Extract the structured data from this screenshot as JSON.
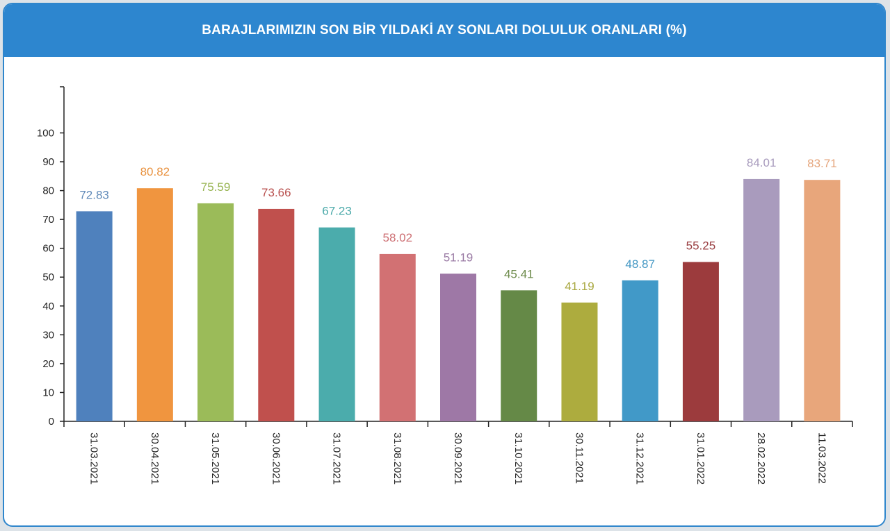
{
  "header": {
    "title": "BARAJLARIMIZIN SON BİR YILDAKİ AY SONLARI DOLULUK ORANLARI (%)"
  },
  "chart_data": {
    "type": "bar",
    "title": "BARAJLARIMIZIN SON BİR YILDAKİ AY SONLARI DOLULUK ORANLARI (%)",
    "xlabel": "",
    "ylabel": "",
    "ylim": [
      0,
      116
    ],
    "yticks": [
      0,
      10,
      20,
      30,
      40,
      50,
      60,
      70,
      80,
      90,
      100
    ],
    "grid": false,
    "legend": "none",
    "categories": [
      "31.03.2021",
      "30.04.2021",
      "31.05.2021",
      "30.06.2021",
      "31.07.2021",
      "31.08.2021",
      "30.09.2021",
      "31.10.2021",
      "30.11.2021",
      "31.12.2021",
      "31.01.2022",
      "28.02.2022",
      "11.03.2022"
    ],
    "values": [
      72.83,
      80.82,
      75.59,
      73.66,
      67.23,
      58.02,
      51.19,
      45.41,
      41.19,
      48.87,
      55.25,
      84.01,
      83.71
    ],
    "value_labels": [
      "72.83",
      "80.82",
      "75.59",
      "73.66",
      "67.23",
      "58.02",
      "51.19",
      "45.41",
      "41.19",
      "48.87",
      "55.25",
      "84.01",
      "83.71"
    ],
    "bar_colors": [
      "#4f81bd",
      "#f0953f",
      "#9bbb59",
      "#c0504d",
      "#4bacac",
      "#d27173",
      "#9e78a6",
      "#658947",
      "#adac3e",
      "#4199c8",
      "#9c3b3d",
      "#a99bbd",
      "#e8a67b"
    ],
    "label_colors": [
      "#5f89b8",
      "#e99443",
      "#98b452",
      "#b9514f",
      "#4aa9a9",
      "#cd6f73",
      "#9a7aa4",
      "#6c8a4a",
      "#a8a73e",
      "#4598c4",
      "#9a3f42",
      "#a89bbd",
      "#e5a57c"
    ]
  }
}
